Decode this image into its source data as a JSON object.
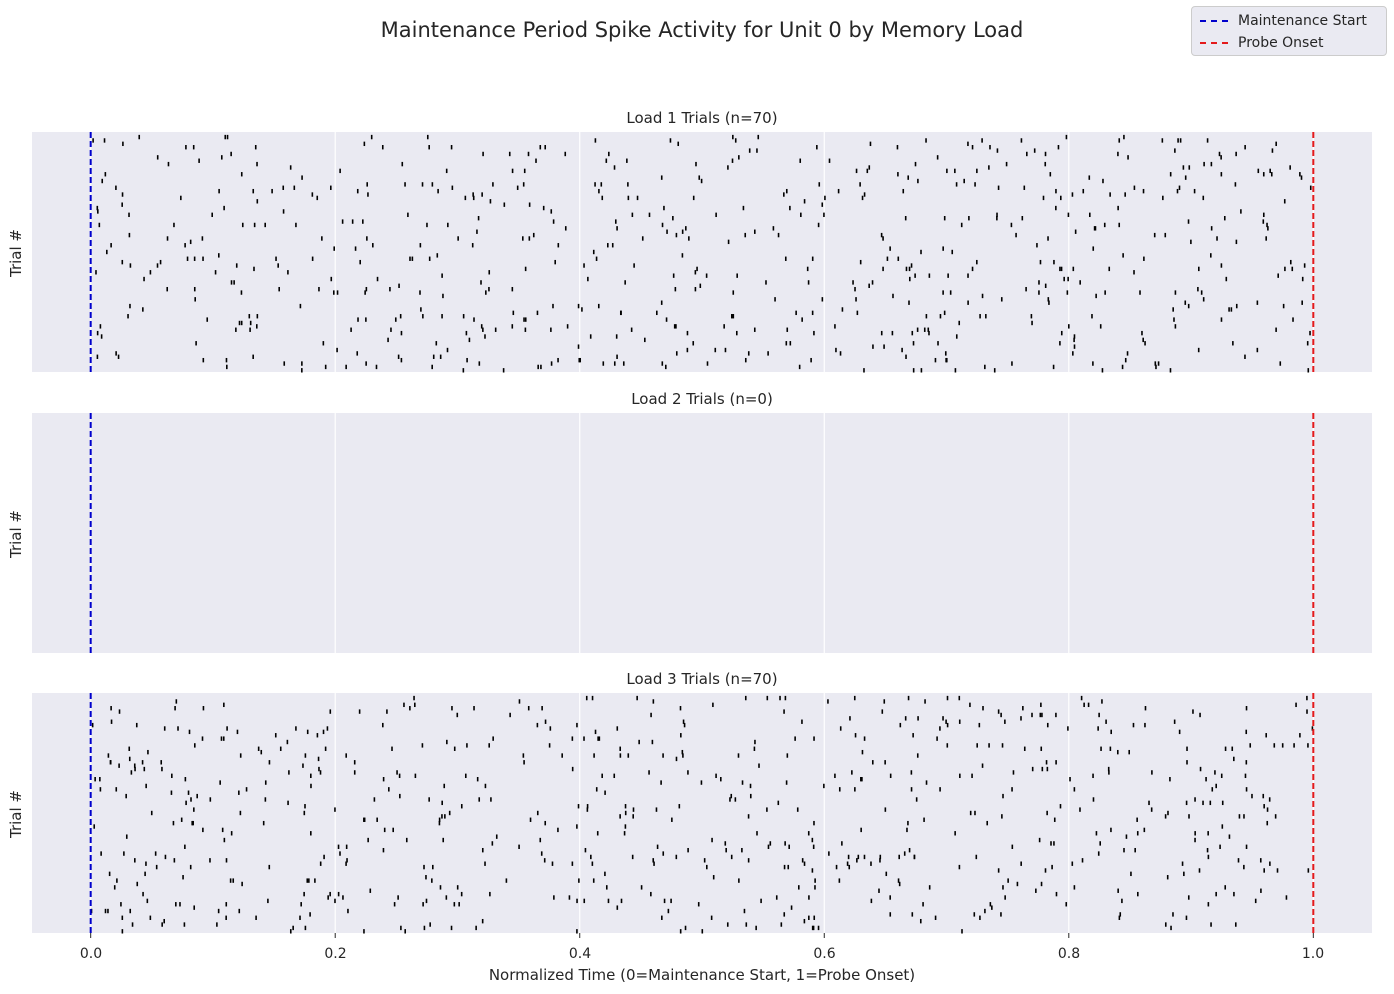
{
  "chart_data": {
    "type": "scatter",
    "title": "Maintenance Period Spike Activity for Unit 0 by Memory Load",
    "xlabel": "Normalized Time (0=Maintenance Start, 1=Probe Onset)",
    "ylabel": "Trial #",
    "xlim": [
      -0.048,
      1.048
    ],
    "xticks": [
      "0.0",
      "0.2",
      "0.4",
      "0.6",
      "0.8",
      "1.0"
    ],
    "grid": true,
    "legend_placement": "top-right",
    "legend": [
      {
        "label": "Maintenance Start",
        "x": 0,
        "color": "#0000cc",
        "style": "dashed"
      },
      {
        "label": "Probe Onset",
        "x": 1,
        "color": "#e41a1c",
        "style": "dashed"
      }
    ],
    "panels": [
      {
        "title": "Load 1 Trials (n=70)",
        "trials": 70,
        "ylim": [
          -0.5,
          70.5
        ]
      },
      {
        "title": "Load 2 Trials (n=0)",
        "trials": 0,
        "ylim": [
          -0.5,
          70.5
        ]
      },
      {
        "title": "Load 3 Trials (n=70)",
        "trials": 70,
        "ylim": [
          -0.5,
          70.5
        ]
      }
    ],
    "colors": {
      "axes_bg": "#eaeaf2",
      "grid": "#ffffff",
      "spike": "#000000"
    }
  }
}
